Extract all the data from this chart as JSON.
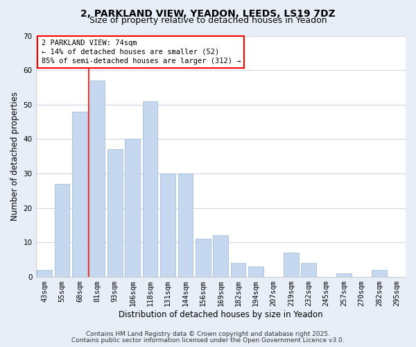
{
  "title_line1": "2, PARKLAND VIEW, YEADON, LEEDS, LS19 7DZ",
  "title_line2": "Size of property relative to detached houses in Yeadon",
  "xlabel": "Distribution of detached houses by size in Yeadon",
  "ylabel": "Number of detached properties",
  "categories": [
    "43sqm",
    "55sqm",
    "68sqm",
    "81sqm",
    "93sqm",
    "106sqm",
    "118sqm",
    "131sqm",
    "144sqm",
    "156sqm",
    "169sqm",
    "182sqm",
    "194sqm",
    "207sqm",
    "219sqm",
    "232sqm",
    "245sqm",
    "257sqm",
    "270sqm",
    "282sqm",
    "295sqm"
  ],
  "values": [
    2,
    27,
    48,
    57,
    37,
    40,
    51,
    30,
    30,
    11,
    12,
    4,
    3,
    0,
    7,
    4,
    0,
    1,
    0,
    2,
    0
  ],
  "bar_color": "#c5d8f0",
  "bar_edge_color": "#adc4e0",
  "redline_x": 2.5,
  "redline_label": "2 PARKLAND VIEW: 74sqm",
  "annotation_line1": "← 14% of detached houses are smaller (52)",
  "annotation_line2": "85% of semi-detached houses are larger (312) →",
  "ylim": [
    0,
    70
  ],
  "yticks": [
    0,
    10,
    20,
    30,
    40,
    50,
    60,
    70
  ],
  "footer_line1": "Contains HM Land Registry data © Crown copyright and database right 2025.",
  "footer_line2": "Contains public sector information licensed under the Open Government Licence v3.0.",
  "plot_bg_color": "#ffffff",
  "fig_bg_color": "#e8eef8",
  "grid_color": "#d0d8e8",
  "title_fontsize": 10,
  "subtitle_fontsize": 9,
  "axis_label_fontsize": 8.5,
  "tick_fontsize": 7.5,
  "footer_fontsize": 6.5,
  "annot_fontsize": 7.5
}
